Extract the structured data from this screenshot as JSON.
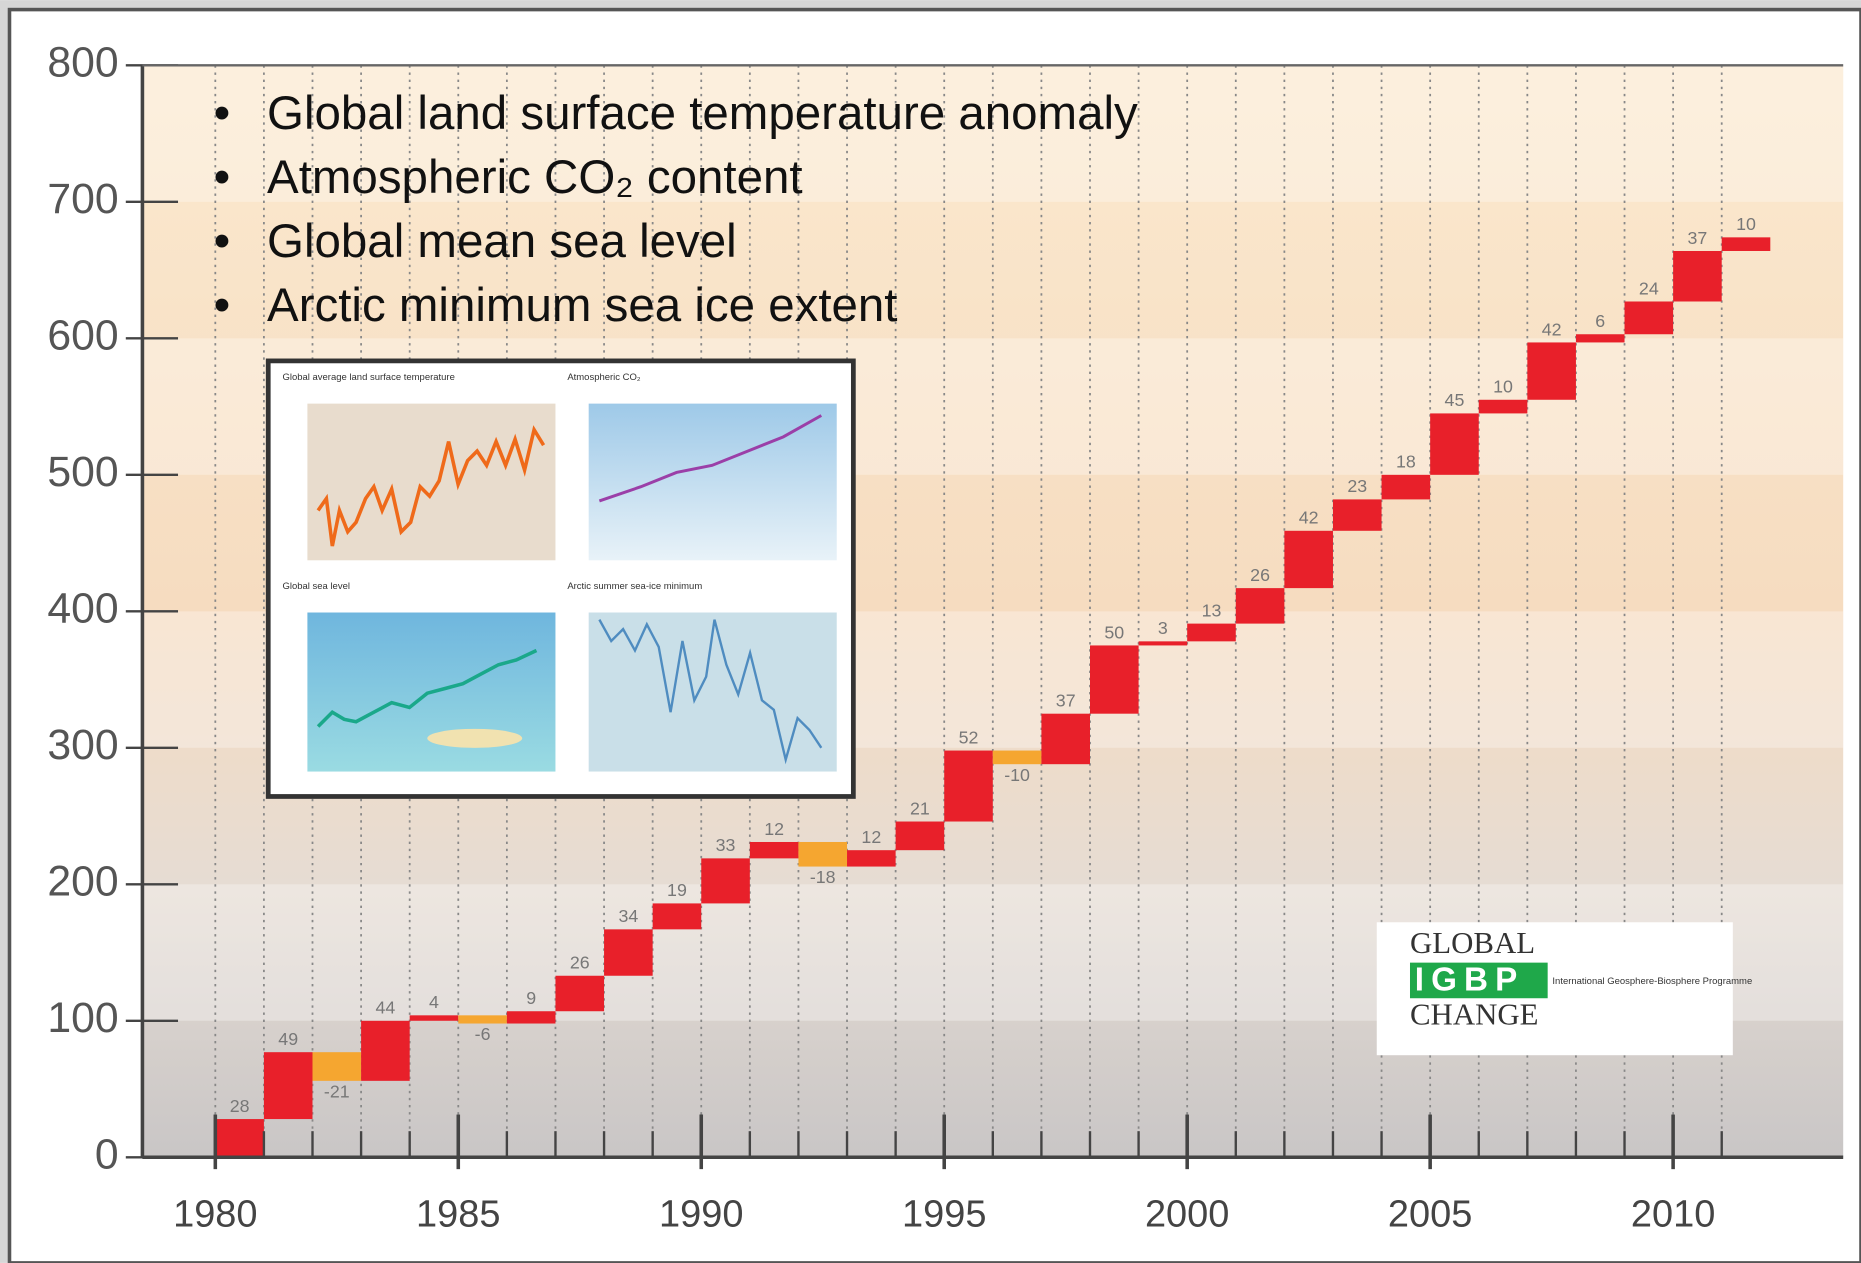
{
  "bullets": [
    "Global land surface temperature anomaly",
    "Atmospheric CO₂ content",
    "Global mean sea level",
    "Arctic minimum sea ice extent"
  ],
  "inset": {
    "titles": [
      "Global average land surface temperature",
      "Atmospheric CO₂",
      "Global sea level",
      "Arctic summer sea-ice minimum"
    ]
  },
  "logo": {
    "top": "GLOBAL",
    "middle": "IGBP",
    "bottom": "CHANGE",
    "caption": "International Geosphere-Biosphere Programme"
  },
  "chart_data": {
    "type": "waterfall",
    "x": [
      1980,
      1981,
      1982,
      1983,
      1984,
      1985,
      1986,
      1987,
      1988,
      1989,
      1990,
      1991,
      1992,
      1993,
      1994,
      1995,
      1996,
      1997,
      1998,
      1999,
      2000,
      2001,
      2002,
      2003,
      2004,
      2005,
      2006,
      2007,
      2008,
      2009,
      2010,
      2011
    ],
    "values": [
      28,
      49,
      -21,
      44,
      4,
      -6,
      9,
      26,
      34,
      19,
      33,
      12,
      -18,
      12,
      21,
      52,
      -10,
      37,
      50,
      3,
      13,
      26,
      42,
      23,
      18,
      45,
      10,
      42,
      6,
      24,
      37,
      10
    ],
    "increase_color": "#e8202a",
    "decrease_color": "#f5a630",
    "xlim": [
      1978.5,
      2013.5
    ],
    "xticks": [
      1980,
      1985,
      1990,
      1995,
      2000,
      2005,
      2010
    ],
    "ylim": [
      0,
      800
    ],
    "yticks": [
      0,
      100,
      200,
      300,
      400,
      500,
      600,
      700,
      800
    ],
    "grid": true
  }
}
